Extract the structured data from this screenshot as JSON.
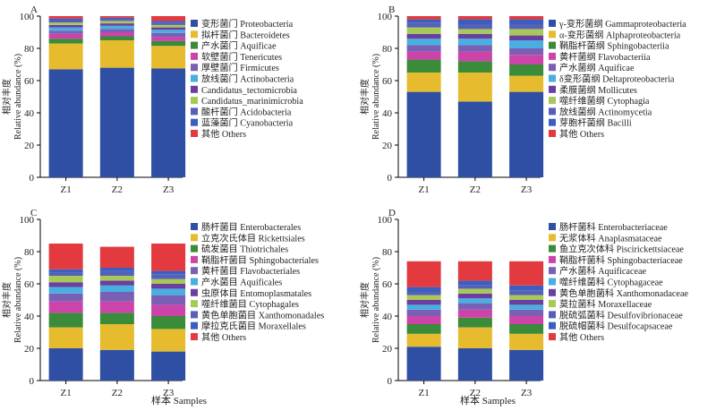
{
  "chart_data": [
    {
      "panel": "A",
      "type": "bar",
      "stacked": true,
      "categories": [
        "Z1",
        "Z2",
        "Z3"
      ],
      "ylabel": "Relative abundance (%)",
      "ylabel_cn": "相对丰度",
      "xlabel": "",
      "ylim": [
        0,
        100
      ],
      "yticks": [
        0,
        20,
        40,
        60,
        80,
        100
      ],
      "legend_position": "right",
      "series": [
        {
          "name": "变形菌门 Proteobacteria",
          "color": "#2E4FA3",
          "values": [
            67,
            68,
            67.5
          ]
        },
        {
          "name": "拟杆菌门 Bacteroidetes",
          "color": "#E6BC2E",
          "values": [
            16,
            17,
            14
          ]
        },
        {
          "name": "产水菌门 Aquificae",
          "color": "#3A8B3A",
          "values": [
            3,
            2.5,
            3
          ]
        },
        {
          "name": "软壁菌门 Tenericutes",
          "color": "#CC44AA",
          "values": [
            3,
            2.5,
            2.5
          ]
        },
        {
          "name": "厚壁菌门 Firmicutes",
          "color": "#7A60B5",
          "values": [
            2,
            2,
            2.5
          ]
        },
        {
          "name": "放线菌门 Actinobacteria",
          "color": "#49AEE0",
          "values": [
            2,
            2,
            2
          ]
        },
        {
          "name": "Candidatus_tectomicrobia",
          "color": "#6A3FA0",
          "values": [
            1.5,
            1.5,
            1.5
          ]
        },
        {
          "name": "Candidatus_marinimicrobia",
          "color": "#A8C858",
          "values": [
            1.5,
            1.5,
            1.5
          ]
        },
        {
          "name": "酸杆菌门 Acidobacteria",
          "color": "#5560B8",
          "values": [
            1.5,
            1,
            1.5
          ]
        },
        {
          "name": "蓝藻菌门 Cyanobacteria",
          "color": "#3B5FBF",
          "values": [
            1,
            1,
            1
          ]
        },
        {
          "name": "其他 Others",
          "color": "#E23A3F",
          "values": [
            1.5,
            1,
            3
          ]
        }
      ]
    },
    {
      "panel": "B",
      "type": "bar",
      "stacked": true,
      "categories": [
        "Z1",
        "Z2",
        "Z3"
      ],
      "ylabel": "Relative abundance (%)",
      "ylabel_cn": "相对丰度",
      "xlabel": "",
      "ylim": [
        0,
        100
      ],
      "yticks": [
        0,
        20,
        40,
        60,
        80,
        100
      ],
      "legend_position": "right",
      "series": [
        {
          "name": "γ-变形菌纲 Gammaproteobacteria",
          "color": "#2E4FA3",
          "values": [
            53,
            47,
            53
          ]
        },
        {
          "name": "α-变形菌纲 Alphaproteobacteria",
          "color": "#E6BC2E",
          "values": [
            12,
            18,
            10
          ]
        },
        {
          "name": "鞘脂杆菌纲 Sphingobacteriia",
          "color": "#3A8B3A",
          "values": [
            8,
            7,
            7
          ]
        },
        {
          "name": "黄杆菌纲 Flavobacteriia",
          "color": "#CC44AA",
          "values": [
            5,
            6,
            6
          ]
        },
        {
          "name": "产水菌纲 Aquificae",
          "color": "#7A60B5",
          "values": [
            4,
            4,
            4
          ]
        },
        {
          "name": "δ变形菌纲 Deltaproteobacteria",
          "color": "#49AEE0",
          "values": [
            4,
            4,
            5
          ]
        },
        {
          "name": "柔膜菌纲 Mollicutes",
          "color": "#6A3FA0",
          "values": [
            3,
            3,
            3
          ]
        },
        {
          "name": "噬纤维菌纲 Cytophagia",
          "color": "#A8C858",
          "values": [
            4,
            3,
            4
          ]
        },
        {
          "name": "放线菌纲 Actinomycetia",
          "color": "#5560B8",
          "values": [
            3,
            3,
            3
          ]
        },
        {
          "name": "芽胞杆菌纲 Bacilli",
          "color": "#3B5FBF",
          "values": [
            2,
            3,
            3
          ]
        },
        {
          "name": "其他 Others",
          "color": "#E23A3F",
          "values": [
            2,
            2,
            2
          ]
        }
      ]
    },
    {
      "panel": "C",
      "type": "bar",
      "stacked": true,
      "categories": [
        "Z1",
        "Z2",
        "Z3"
      ],
      "ylabel": "Relative abundance (%)",
      "ylabel_cn": "相对丰度",
      "xlabel": "",
      "ylim": [
        0,
        100
      ],
      "yticks": [
        0,
        20,
        40,
        60,
        80,
        100
      ],
      "legend_position": "right",
      "series": [
        {
          "name": "肠杆菌目 Enterobacterales",
          "color": "#2E4FA3",
          "values": [
            20,
            19,
            18
          ]
        },
        {
          "name": "立克次氏体目 Rickettsiales",
          "color": "#E6BC2E",
          "values": [
            13,
            16,
            14
          ]
        },
        {
          "name": "硫发菌目 Thiotrichales",
          "color": "#3A8B3A",
          "values": [
            9,
            7,
            8
          ]
        },
        {
          "name": "鞘脂杆菌目 Sphingobacteriales",
          "color": "#CC44AA",
          "values": [
            7,
            7,
            7
          ]
        },
        {
          "name": "黄杆菌目 Flavobacteriales",
          "color": "#7A60B5",
          "values": [
            5,
            6,
            6
          ]
        },
        {
          "name": "产水菌目 Aquificales",
          "color": "#49AEE0",
          "values": [
            4,
            4,
            4
          ]
        },
        {
          "name": "虫原体目 Entomoplasmatales",
          "color": "#6A3FA0",
          "values": [
            3,
            3,
            3
          ]
        },
        {
          "name": "噬纤维菌目 Cytophagales",
          "color": "#A8C858",
          "values": [
            4,
            3,
            3
          ]
        },
        {
          "name": "黄色单胞菌目 Xanthomonadales",
          "color": "#5560B8",
          "values": [
            2,
            3,
            3
          ]
        },
        {
          "name": "摩拉克氏菌目 Moraxellales",
          "color": "#3B5FBF",
          "values": [
            2,
            2,
            2
          ]
        },
        {
          "name": "其他 Others",
          "color": "#E23A3F",
          "values": [
            16,
            13,
            17
          ]
        }
      ]
    },
    {
      "panel": "D",
      "type": "bar",
      "stacked": true,
      "categories": [
        "Z1",
        "Z2",
        "Z3"
      ],
      "ylabel": "Relative abundance (%)",
      "ylabel_cn": "相对丰度",
      "xlabel": "Samples",
      "xlabel_cn": "样本",
      "ylim": [
        0,
        100
      ],
      "yticks": [
        0,
        20,
        40,
        60,
        80,
        100
      ],
      "legend_position": "right",
      "series": [
        {
          "name": "肠杆菌科 Enterobacteriaceae",
          "color": "#2E4FA3",
          "values": [
            21,
            20,
            19
          ]
        },
        {
          "name": "无浆体科 Anaplasmataceae",
          "color": "#E6BC2E",
          "values": [
            8,
            13,
            10
          ]
        },
        {
          "name": "鱼立克次体科 Piscirickettsiaceae",
          "color": "#3A8B3A",
          "values": [
            6,
            6,
            6
          ]
        },
        {
          "name": "鞘脂杆菌科 Sphingobacteriaceae",
          "color": "#CC44AA",
          "values": [
            5,
            5,
            5
          ]
        },
        {
          "name": "产水菌科 Aquificaceae",
          "color": "#7A60B5",
          "values": [
            4,
            4,
            4
          ]
        },
        {
          "name": "噬纤维菌科 Cytophagaceae",
          "color": "#49AEE0",
          "values": [
            3,
            3,
            3
          ]
        },
        {
          "name": "黄色单胞菌科 Xanthomonadaceae",
          "color": "#6A3FA0",
          "values": [
            3,
            3,
            3
          ]
        },
        {
          "name": "莫拉菌科 Moraxellaceae",
          "color": "#A8C858",
          "values": [
            3,
            3,
            3
          ]
        },
        {
          "name": "脱硫弧菌科 Desulfovibrionaceae",
          "color": "#5560B8",
          "values": [
            2,
            2,
            3
          ]
        },
        {
          "name": "脱硫帽菌科 Desulfocapsaceae",
          "color": "#3B5FBF",
          "values": [
            3,
            3,
            3
          ]
        },
        {
          "name": "其他 Others",
          "color": "#E23A3F",
          "values": [
            16,
            12,
            15
          ]
        }
      ]
    }
  ]
}
